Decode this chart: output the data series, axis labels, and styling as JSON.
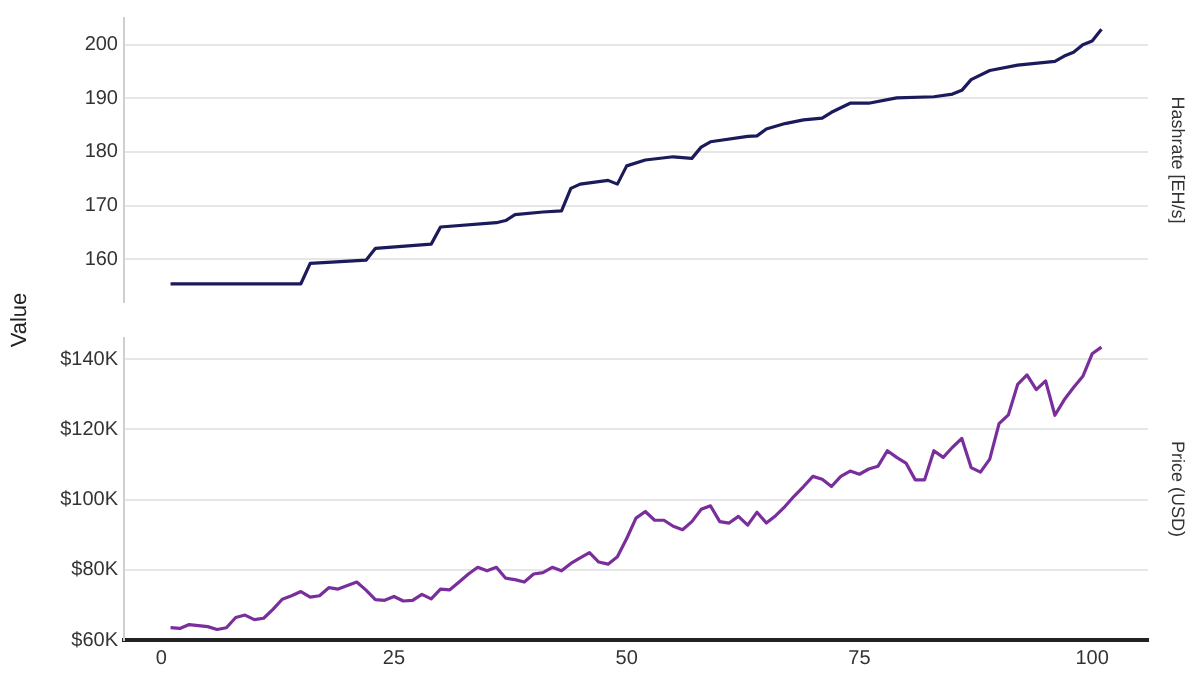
{
  "chart_data": [
    {
      "type": "line",
      "ylabel": "Value",
      "y2label": "Hashrate [EH/s]",
      "xlim": [
        -4,
        106
      ],
      "xticks": [
        0,
        25,
        50,
        75,
        100
      ],
      "ylim": [
        152,
        205
      ],
      "yticks": [
        160,
        170,
        180,
        190,
        200
      ],
      "grid": "y",
      "tick_labels": "y",
      "series": [
        {
          "color": "#1b1b5c",
          "x": [
            1,
            15,
            16,
            22,
            23,
            29,
            30,
            36,
            37,
            38,
            41,
            43,
            44,
            45,
            48,
            49,
            50,
            52,
            55,
            57,
            58,
            59,
            63,
            64,
            65,
            67,
            69,
            71,
            72,
            74,
            76,
            79,
            83,
            85,
            86,
            87,
            89,
            92,
            96,
            97,
            98,
            99,
            100,
            101
          ],
          "values": [
            155.4,
            155.4,
            159.2,
            159.8,
            162,
            162.8,
            166,
            166.8,
            167.2,
            168.3,
            168.8,
            169,
            173.2,
            174,
            174.7,
            174,
            177.4,
            178.5,
            179.1,
            178.8,
            180.9,
            181.9,
            182.9,
            183,
            184.3,
            185.3,
            186,
            186.3,
            187.4,
            189.1,
            189.1,
            190.1,
            190.3,
            190.8,
            191.5,
            193.5,
            195.2,
            196.2,
            196.9,
            197.9,
            198.6,
            200,
            200.7,
            202.9
          ]
        }
      ]
    },
    {
      "type": "line",
      "y2label": "Price (USD)",
      "xlim": [
        -4,
        106
      ],
      "xticks": [
        0,
        25,
        50,
        75,
        100
      ],
      "ylim": [
        60000,
        146000
      ],
      "yticks": [
        {
          "value": 60000,
          "label": "$60K"
        },
        {
          "value": 80000,
          "label": "$80K"
        },
        {
          "value": 100000,
          "label": "$100K"
        },
        {
          "value": 120000,
          "label": "$120K"
        },
        {
          "value": 140000,
          "label": "$140K"
        }
      ],
      "grid": "y",
      "series": [
        {
          "color": "#7a2e9c",
          "x": [
            1,
            2,
            3,
            4,
            5,
            6,
            7,
            8,
            9,
            10,
            11,
            12,
            13,
            14,
            15,
            16,
            17,
            18,
            19,
            20,
            21,
            22,
            23,
            24,
            25,
            26,
            27,
            28,
            29,
            30,
            31,
            32,
            33,
            34,
            35,
            36,
            37,
            38,
            39,
            40,
            41,
            42,
            43,
            44,
            45,
            46,
            47,
            48,
            49,
            50,
            51,
            52,
            53,
            54,
            55,
            56,
            57,
            58,
            59,
            60,
            61,
            62,
            63,
            64,
            65,
            66,
            67,
            68,
            69,
            70,
            71,
            72,
            73,
            74,
            75,
            76,
            77,
            78,
            79,
            80,
            81,
            82,
            83,
            84,
            85,
            86,
            87,
            88,
            89,
            90,
            91,
            92,
            93,
            94,
            95,
            96,
            97,
            98,
            99,
            100,
            101
          ],
          "values": [
            63500,
            63300,
            64400,
            64100,
            63800,
            63000,
            63500,
            66400,
            67100,
            65800,
            66200,
            68700,
            71600,
            72600,
            73800,
            72200,
            72600,
            74900,
            74500,
            75500,
            76500,
            74200,
            71500,
            71300,
            72400,
            71100,
            71300,
            73000,
            71700,
            74500,
            74300,
            76500,
            78800,
            80700,
            79700,
            80700,
            77600,
            77200,
            76500,
            78800,
            79200,
            80700,
            79700,
            81800,
            83400,
            84900,
            82200,
            81600,
            83700,
            88900,
            94700,
            96600,
            94100,
            94100,
            92400,
            91400,
            93700,
            97200,
            98200,
            93700,
            93300,
            95200,
            92700,
            96400,
            93300,
            95400,
            98000,
            101000,
            103700,
            106600,
            105800,
            103700,
            106600,
            108100,
            107200,
            108700,
            109500,
            113900,
            112000,
            110400,
            105600,
            105600,
            113900,
            112000,
            114900,
            117400,
            109100,
            107800,
            111500,
            121600,
            124100,
            132800,
            135500,
            131300,
            133800,
            124000,
            128400,
            131900,
            135100,
            141500,
            143400
          ]
        }
      ]
    }
  ]
}
